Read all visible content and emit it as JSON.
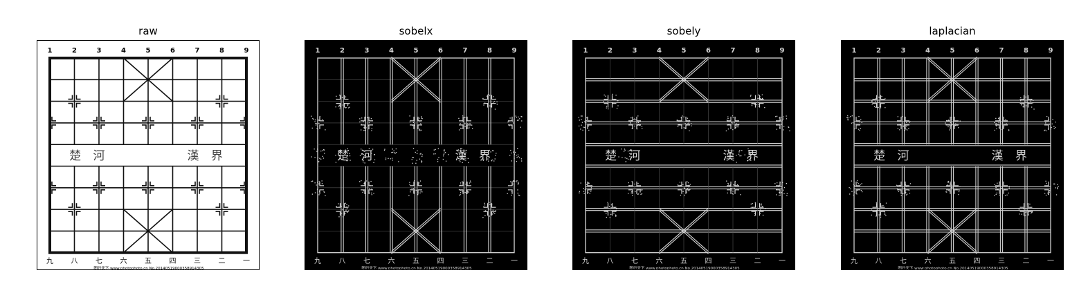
{
  "panels": [
    {
      "id": "raw",
      "title": "raw",
      "bg": "#ffffff",
      "fg": "#111111"
    },
    {
      "id": "sobelx",
      "title": "sobelx",
      "bg": "#000000",
      "fg": "#d8d8d8"
    },
    {
      "id": "sobely",
      "title": "sobely",
      "bg": "#000000",
      "fg": "#d8d8d8"
    },
    {
      "id": "laplacian",
      "title": "laplacian",
      "bg": "#000000",
      "fg": "#cfcfcf"
    }
  ],
  "board": {
    "column_numbers": [
      "1",
      "2",
      "3",
      "4",
      "5",
      "6",
      "7",
      "8",
      "9"
    ],
    "bottom_numerals": [
      "九",
      "八",
      "七",
      "六",
      "五",
      "四",
      "三",
      "二",
      "一"
    ],
    "river_left": "楚 河",
    "river_right": "漢 界",
    "watermark": "图行天下 www.photophoto.cn  No.20140519000358914305"
  }
}
